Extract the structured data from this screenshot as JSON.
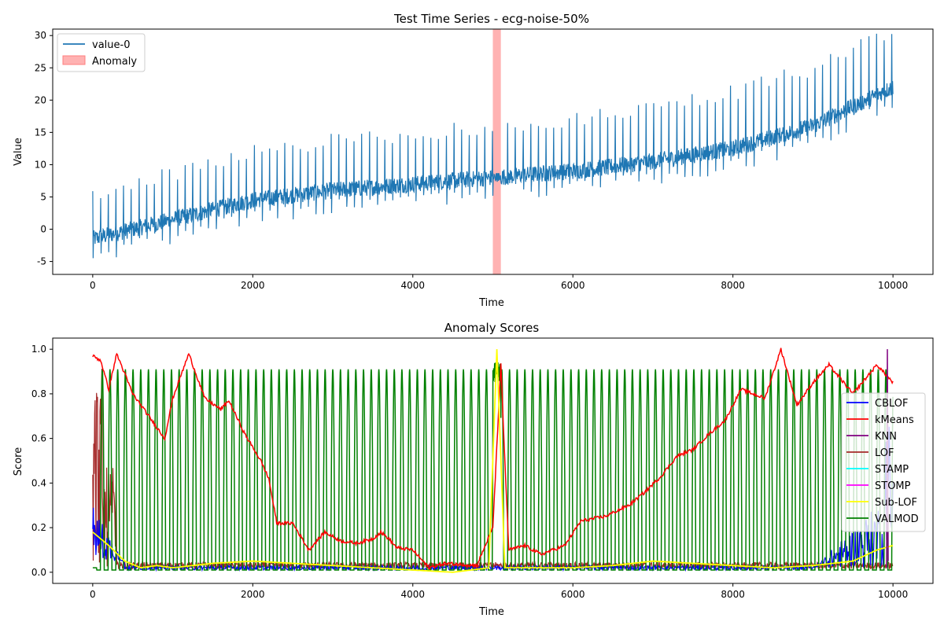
{
  "chart_data": [
    {
      "type": "line",
      "title": "Test Time Series - ecg-noise-50%",
      "xlabel": "Time",
      "ylabel": "Value",
      "xlim": [
        -500,
        10500
      ],
      "ylim": [
        -7,
        31
      ],
      "xticks": [
        0,
        2000,
        4000,
        6000,
        8000,
        10000
      ],
      "yticks": [
        -5,
        0,
        5,
        10,
        15,
        20,
        25,
        30
      ],
      "legend": {
        "position": "upper-left",
        "entries": [
          "value-0",
          "Anomaly"
        ]
      },
      "series": [
        {
          "name": "value-0",
          "color": "#1f77b4",
          "description_points": [
            [
              0,
              -1.5
            ],
            [
              1000,
              1.5
            ],
            [
              2000,
              4.5
            ],
            [
              3000,
              6.0
            ],
            [
              4000,
              7.0
            ],
            [
              5000,
              8.0
            ],
            [
              6000,
              9.0
            ],
            [
              7000,
              10.5
            ],
            [
              8000,
              12.5
            ],
            [
              9000,
              16.0
            ],
            [
              10000,
              22.0
            ]
          ]
        }
      ],
      "anomaly_region": {
        "label": "Anomaly",
        "x_start": 5000,
        "x_end": 5100,
        "color": "#ff7f7f"
      }
    },
    {
      "type": "line",
      "title": "Anomaly Scores",
      "xlabel": "Time",
      "ylabel": "Score",
      "xlim": [
        -500,
        10500
      ],
      "ylim": [
        -0.05,
        1.05
      ],
      "xticks": [
        0,
        2000,
        4000,
        6000,
        8000,
        10000
      ],
      "yticks": [
        0.0,
        0.2,
        0.4,
        0.6,
        0.8,
        1.0
      ],
      "legend": {
        "position": "center-right"
      },
      "series": [
        {
          "name": "CBLOF",
          "color": "#0000ff"
        },
        {
          "name": "kMeans",
          "color": "#ff0000"
        },
        {
          "name": "KNN",
          "color": "#800080"
        },
        {
          "name": "LOF",
          "color": "#a52a2a"
        },
        {
          "name": "STAMP",
          "color": "#00ffff"
        },
        {
          "name": "STOMP",
          "color": "#ff00ff"
        },
        {
          "name": "Sub-LOF",
          "color": "#ffff00"
        },
        {
          "name": "VALMOD",
          "color": "#008000"
        }
      ],
      "kmeans_points": [
        [
          0,
          0.97
        ],
        [
          100,
          0.95
        ],
        [
          200,
          0.82
        ],
        [
          300,
          0.98
        ],
        [
          500,
          0.8
        ],
        [
          700,
          0.7
        ],
        [
          900,
          0.6
        ],
        [
          1000,
          0.78
        ],
        [
          1200,
          0.98
        ],
        [
          1400,
          0.78
        ],
        [
          1600,
          0.73
        ],
        [
          1700,
          0.77
        ],
        [
          1900,
          0.62
        ],
        [
          2100,
          0.5
        ],
        [
          2200,
          0.42
        ],
        [
          2300,
          0.22
        ],
        [
          2500,
          0.22
        ],
        [
          2700,
          0.1
        ],
        [
          2900,
          0.18
        ],
        [
          3100,
          0.14
        ],
        [
          3300,
          0.13
        ],
        [
          3500,
          0.15
        ],
        [
          3600,
          0.18
        ],
        [
          3700,
          0.15
        ],
        [
          3800,
          0.11
        ],
        [
          4000,
          0.1
        ],
        [
          4100,
          0.06
        ],
        [
          4200,
          0.02
        ],
        [
          4400,
          0.04
        ],
        [
          4800,
          0.03
        ],
        [
          5000,
          0.2
        ],
        [
          5100,
          0.93
        ],
        [
          5150,
          0.5
        ],
        [
          5200,
          0.1
        ],
        [
          5400,
          0.12
        ],
        [
          5600,
          0.08
        ],
        [
          5900,
          0.12
        ],
        [
          6100,
          0.23
        ],
        [
          6400,
          0.25
        ],
        [
          6700,
          0.3
        ],
        [
          6900,
          0.36
        ],
        [
          7100,
          0.43
        ],
        [
          7300,
          0.52
        ],
        [
          7500,
          0.55
        ],
        [
          7700,
          0.62
        ],
        [
          7900,
          0.68
        ],
        [
          8100,
          0.82
        ],
        [
          8400,
          0.78
        ],
        [
          8600,
          1.0
        ],
        [
          8800,
          0.75
        ],
        [
          9000,
          0.85
        ],
        [
          9200,
          0.93
        ],
        [
          9500,
          0.8
        ],
        [
          9800,
          0.93
        ],
        [
          10000,
          0.85
        ]
      ],
      "sublof_points": [
        [
          0,
          0.18
        ],
        [
          200,
          0.12
        ],
        [
          400,
          0.05
        ],
        [
          600,
          0.02
        ],
        [
          800,
          0.03
        ],
        [
          1000,
          0.02
        ],
        [
          1500,
          0.04
        ],
        [
          2000,
          0.05
        ],
        [
          2500,
          0.04
        ],
        [
          3000,
          0.03
        ],
        [
          3500,
          0.02
        ],
        [
          4000,
          0.01
        ],
        [
          4500,
          0.0
        ],
        [
          4950,
          0.02
        ],
        [
          5050,
          1.0
        ],
        [
          5150,
          0.02
        ],
        [
          5500,
          0.02
        ],
        [
          6000,
          0.02
        ],
        [
          6500,
          0.03
        ],
        [
          7000,
          0.05
        ],
        [
          7500,
          0.04
        ],
        [
          8000,
          0.03
        ],
        [
          8500,
          0.02
        ],
        [
          9000,
          0.03
        ],
        [
          9500,
          0.05
        ],
        [
          9800,
          0.1
        ],
        [
          10000,
          0.12
        ]
      ]
    }
  ]
}
